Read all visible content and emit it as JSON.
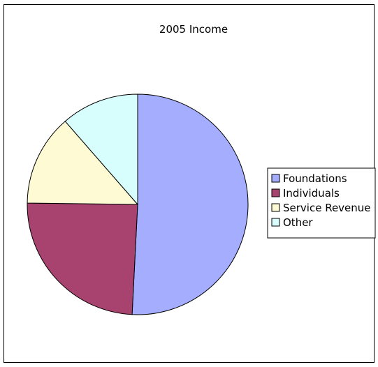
{
  "chart_data": {
    "type": "pie",
    "title": "2005 Income",
    "categories": [
      "Foundations",
      "Individuals",
      "Service Revenue",
      "Other"
    ],
    "values": [
      50.8,
      24.4,
      13.4,
      11.4
    ],
    "colors": [
      "#a4adfe",
      "#a8426f",
      "#fdfad4",
      "#d7fdfd"
    ],
    "start_angle_deg": 0,
    "direction": "clockwise",
    "legend_position": "right"
  }
}
